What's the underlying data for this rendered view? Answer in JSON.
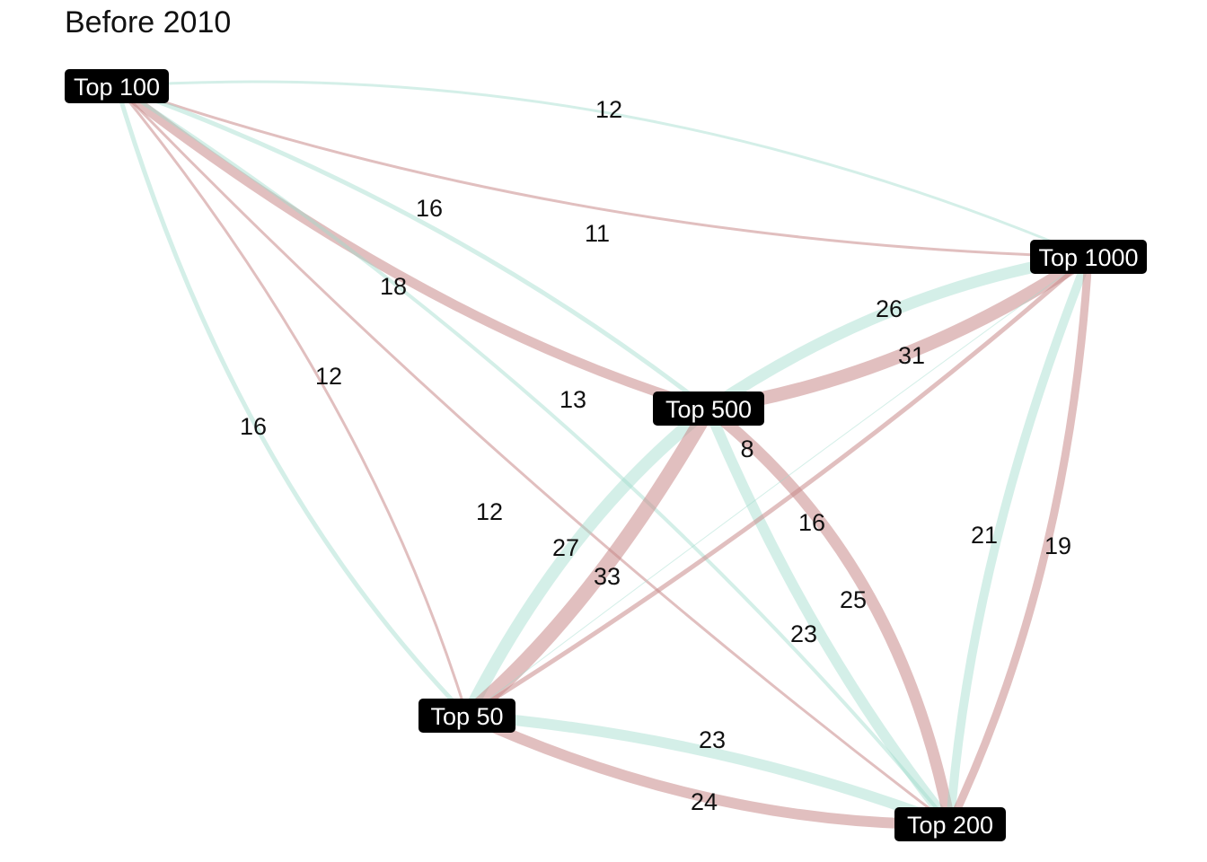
{
  "title": "Before 2010",
  "colors": {
    "green": "#9fdccb",
    "red": "#c98b8b",
    "node_bg": "#000000",
    "node_text": "#ffffff"
  },
  "nodes": [
    {
      "id": "top100",
      "label": "Top 100"
    },
    {
      "id": "top1000",
      "label": "Top 1000"
    },
    {
      "id": "top500",
      "label": "Top 500"
    },
    {
      "id": "top50",
      "label": "Top 50"
    },
    {
      "id": "top200",
      "label": "Top 200"
    }
  ],
  "edges": [
    {
      "from": "top100",
      "to": "top1000",
      "value": "12",
      "color": "green"
    },
    {
      "from": "top100",
      "to": "top1000",
      "value": "11",
      "color": "red"
    },
    {
      "from": "top100",
      "to": "top500",
      "value": "16",
      "color": "green"
    },
    {
      "from": "top100",
      "to": "top500",
      "value": "18",
      "color": "red"
    },
    {
      "from": "top100",
      "to": "top50",
      "value": "16",
      "color": "green"
    },
    {
      "from": "top100",
      "to": "top50",
      "value": "12",
      "color": "red"
    },
    {
      "from": "top100",
      "to": "top200",
      "value": "13",
      "color": "green"
    },
    {
      "from": "top100",
      "to": "top200",
      "value": "12",
      "color": "red"
    },
    {
      "from": "top500",
      "to": "top1000",
      "value": "26",
      "color": "green"
    },
    {
      "from": "top500",
      "to": "top1000",
      "value": "31",
      "color": "red"
    },
    {
      "from": "top50",
      "to": "top500",
      "value": "27",
      "color": "green"
    },
    {
      "from": "top50",
      "to": "top500",
      "value": "33",
      "color": "red"
    },
    {
      "from": "top500",
      "to": "top200",
      "value": "23",
      "color": "green"
    },
    {
      "from": "top500",
      "to": "top200",
      "value": "25",
      "color": "red"
    },
    {
      "from": "top50",
      "to": "top1000",
      "value": "8",
      "color": "green"
    },
    {
      "from": "top50",
      "to": "top1000",
      "value": "16",
      "color": "red"
    },
    {
      "from": "top200",
      "to": "top1000",
      "value": "21",
      "color": "green"
    },
    {
      "from": "top200",
      "to": "top1000",
      "value": "19",
      "color": "red"
    },
    {
      "from": "top50",
      "to": "top200",
      "value": "23",
      "color": "green"
    },
    {
      "from": "top50",
      "to": "top200",
      "value": "24",
      "color": "red"
    }
  ]
}
